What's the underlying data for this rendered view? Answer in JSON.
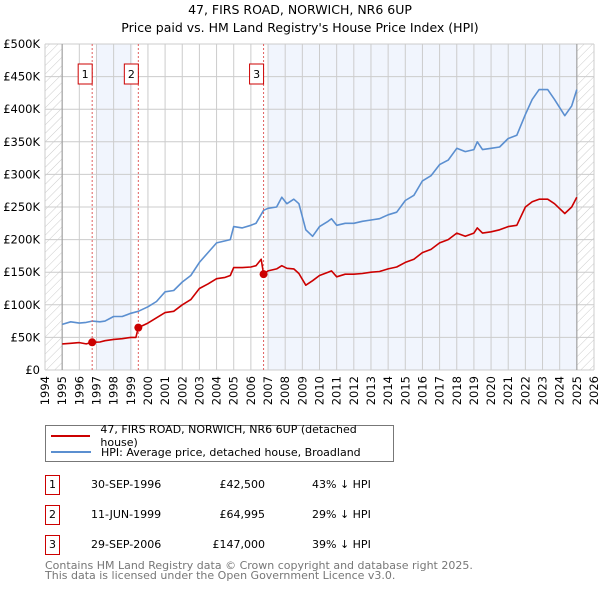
{
  "title": "47, FIRS ROAD, NORWICH, NR6 6UP",
  "subtitle": "Price paid vs. HM Land Registry's House Price Index (HPI)",
  "chart_data": {
    "type": "line",
    "title": "47, FIRS ROAD, NORWICH, NR6 6UP",
    "subtitle": "Price paid vs. HM Land Registry's House Price Index (HPI)",
    "xlim": [
      1994,
      2026
    ],
    "ylim": [
      0,
      500000
    ],
    "x_ticks": [
      "1994",
      "1995",
      "1996",
      "1997",
      "1998",
      "1999",
      "2000",
      "2001",
      "2002",
      "2003",
      "2004",
      "2005",
      "2006",
      "2007",
      "2008",
      "2009",
      "2010",
      "2011",
      "2012",
      "2013",
      "2014",
      "2015",
      "2016",
      "2017",
      "2018",
      "2019",
      "2020",
      "2021",
      "2022",
      "2023",
      "2024",
      "2025",
      "2026"
    ],
    "y_ticks": [
      {
        "v": 0,
        "label": "£0"
      },
      {
        "v": 50000,
        "label": "£50K"
      },
      {
        "v": 100000,
        "label": "£100K"
      },
      {
        "v": 150000,
        "label": "£150K"
      },
      {
        "v": 200000,
        "label": "£200K"
      },
      {
        "v": 250000,
        "label": "£250K"
      },
      {
        "v": 300000,
        "label": "£300K"
      },
      {
        "v": 350000,
        "label": "£350K"
      },
      {
        "v": 400000,
        "label": "£400K"
      },
      {
        "v": 450000,
        "label": "£450K"
      },
      {
        "v": 500000,
        "label": "£500K"
      }
    ],
    "grid": true,
    "data_range": [
      1995,
      2025
    ],
    "shaded_ranges": [
      [
        1997,
        1999.1
      ],
      [
        2007,
        2025
      ]
    ],
    "colors": {
      "property": "#cc0000",
      "hpi": "#5b8fd0"
    },
    "series": [
      {
        "name": "47, FIRS ROAD, NORWICH, NR6 6UP (detached house)",
        "key": "property",
        "x": [
          1995,
          1995.5,
          1996,
          1996.4,
          1996.75,
          1997.2,
          1997.5,
          1998,
          1998.5,
          1999,
          1999.3,
          1999.44,
          2000,
          2000.5,
          2001,
          2001.5,
          2002,
          2002.5,
          2003,
          2003.5,
          2004,
          2004.5,
          2004.8,
          2005,
          2005.5,
          2006,
          2006.3,
          2006.6,
          2006.74,
          2007,
          2007.5,
          2007.8,
          2008.1,
          2008.5,
          2008.8,
          2009.2,
          2009.6,
          2010,
          2010.5,
          2010.7,
          2011,
          2011.5,
          2012,
          2012.5,
          2013,
          2013.5,
          2014,
          2014.5,
          2015,
          2015.5,
          2016,
          2016.5,
          2017,
          2017.5,
          2018,
          2018.5,
          2019,
          2019.2,
          2019.5,
          2020,
          2020.5,
          2021,
          2021.5,
          2022,
          2022.4,
          2022.8,
          2023.3,
          2023.7,
          2024.3,
          2024.7,
          2025
        ],
        "y": [
          40000,
          41000,
          42000,
          40000,
          42500,
          43000,
          45000,
          47000,
          48000,
          50000,
          50000,
          64995,
          72000,
          80000,
          88000,
          90000,
          100000,
          108000,
          125000,
          132000,
          140000,
          142000,
          145000,
          157000,
          157000,
          158000,
          160000,
          170000,
          147000,
          152000,
          155000,
          160000,
          156000,
          155000,
          148000,
          130000,
          137000,
          145000,
          150000,
          152000,
          143000,
          147000,
          147000,
          148000,
          150000,
          151000,
          155000,
          158000,
          165000,
          170000,
          180000,
          185000,
          195000,
          200000,
          210000,
          205000,
          210000,
          218000,
          210000,
          212000,
          215000,
          220000,
          222000,
          250000,
          258000,
          262000,
          262000,
          255000,
          240000,
          250000,
          265000
        ]
      },
      {
        "name": "HPI: Average price, detached house, Broadland",
        "key": "hpi",
        "x": [
          1995,
          1995.5,
          1996,
          1996.4,
          1996.75,
          1997.2,
          1997.5,
          1998,
          1998.5,
          1999,
          1999.44,
          2000,
          2000.5,
          2001,
          2001.5,
          2002,
          2002.5,
          2003,
          2003.5,
          2004,
          2004.5,
          2004.8,
          2005,
          2005.5,
          2006,
          2006.3,
          2006.74,
          2007,
          2007.5,
          2007.8,
          2008.1,
          2008.5,
          2008.8,
          2009.2,
          2009.6,
          2010,
          2010.5,
          2010.7,
          2011,
          2011.5,
          2012,
          2012.5,
          2013,
          2013.5,
          2014,
          2014.5,
          2015,
          2015.5,
          2016,
          2016.5,
          2017,
          2017.5,
          2018,
          2018.5,
          2019,
          2019.2,
          2019.5,
          2020,
          2020.5,
          2021,
          2021.5,
          2022,
          2022.4,
          2022.8,
          2023.3,
          2023.7,
          2024.3,
          2024.7,
          2025
        ],
        "y": [
          70000,
          74000,
          72000,
          73000,
          75000,
          74000,
          75000,
          82000,
          82000,
          87000,
          90000,
          97000,
          105000,
          120000,
          122000,
          135000,
          145000,
          165000,
          180000,
          195000,
          198000,
          200000,
          220000,
          218000,
          222000,
          225000,
          245000,
          248000,
          250000,
          265000,
          255000,
          262000,
          255000,
          215000,
          205000,
          220000,
          228000,
          232000,
          222000,
          225000,
          225000,
          228000,
          230000,
          232000,
          238000,
          242000,
          260000,
          268000,
          290000,
          298000,
          315000,
          322000,
          340000,
          335000,
          338000,
          350000,
          338000,
          340000,
          342000,
          355000,
          360000,
          392000,
          415000,
          430000,
          430000,
          415000,
          390000,
          405000,
          430000
        ]
      }
    ],
    "sales": [
      {
        "id": "1",
        "x": 1996.75,
        "y": 42500
      },
      {
        "id": "2",
        "x": 1999.44,
        "y": 64995
      },
      {
        "id": "3",
        "x": 2006.74,
        "y": 147000
      }
    ],
    "legend_position": "below"
  },
  "legend": [
    {
      "label": "47, FIRS ROAD, NORWICH, NR6 6UP (detached house)"
    },
    {
      "label": "HPI: Average price, detached house, Broadland"
    }
  ],
  "table": [
    {
      "num": "1",
      "date": "30-SEP-1996",
      "price": "£42,500",
      "pct": "43% ↓ HPI"
    },
    {
      "num": "2",
      "date": "11-JUN-1999",
      "price": "£64,995",
      "pct": "29% ↓ HPI"
    },
    {
      "num": "3",
      "date": "29-SEP-2006",
      "price": "£147,000",
      "pct": "39% ↓ HPI"
    }
  ],
  "footer": {
    "line1": "Contains HM Land Registry data © Crown copyright and database right 2025.",
    "line2": "This data is licensed under the Open Government Licence v3.0."
  }
}
